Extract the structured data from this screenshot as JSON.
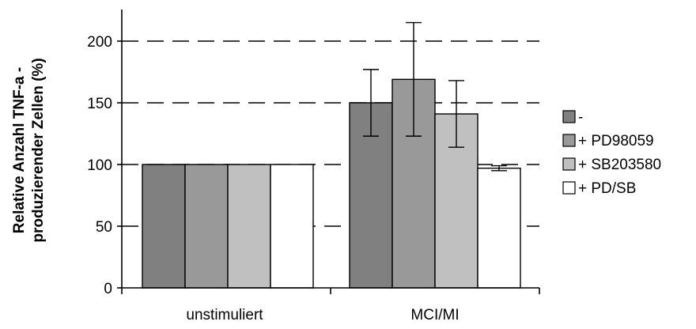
{
  "chart_data": {
    "type": "bar",
    "title": "",
    "xlabel": "",
    "ylabel": [
      "Relative Anzahl TNF-a -",
      "produzierender Zellen (%)"
    ],
    "categories": [
      "unstimuliert",
      "MCI/MI"
    ],
    "ylim": [
      0,
      225
    ],
    "yticks": [
      0,
      50,
      100,
      150,
      200
    ],
    "grid": "dashed horizontal at 50, 100, 150, 200",
    "legend_position": "right",
    "series": [
      {
        "name": "-",
        "color": "#808080",
        "values": [
          100,
          150
        ],
        "errors": [
          0,
          27
        ]
      },
      {
        "name": "+ PD98059",
        "color": "#999999",
        "values": [
          100,
          169
        ],
        "errors": [
          0,
          46
        ]
      },
      {
        "name": "+ SB203580",
        "color": "#c0c0c0",
        "values": [
          100,
          141
        ],
        "errors": [
          0,
          27
        ]
      },
      {
        "name": "+ PD/SB",
        "color": "#ffffff",
        "values": [
          100,
          97
        ],
        "errors": [
          0,
          2
        ]
      }
    ]
  }
}
